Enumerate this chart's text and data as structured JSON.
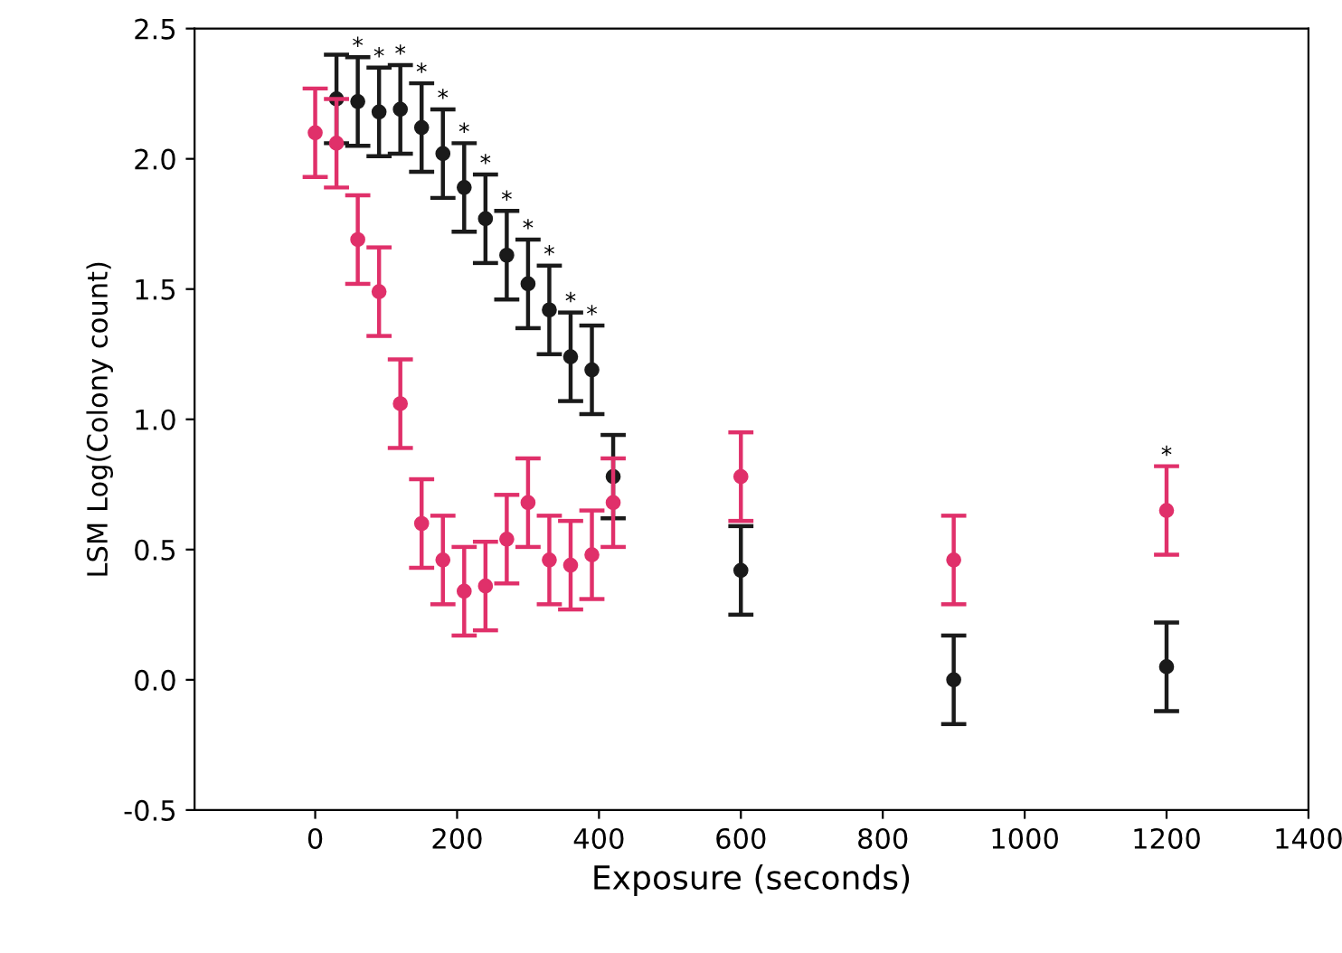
{
  "chart_data": {
    "type": "scatter",
    "xlabel": "Exposure (seconds)",
    "ylabel": "LSM Log(Colony count)",
    "xlim": [
      -170,
      1400
    ],
    "xticks": [
      0,
      200,
      400,
      600,
      800,
      1000,
      1200,
      1400
    ],
    "ylim": [
      -0.5,
      2.5
    ],
    "yticks": [
      -0.5,
      {
        "value": 0,
        "label": "0.0"
      },
      0.5,
      {
        "value": 1,
        "label": "1.0"
      },
      1.5,
      {
        "value": 2,
        "label": "2.0"
      },
      2.5
    ],
    "grid": false,
    "legend": false,
    "marker": "circle",
    "series": [
      {
        "color": "#1a1a1a",
        "x": [
          30,
          60,
          90,
          120,
          150,
          180,
          210,
          240,
          270,
          300,
          330,
          360,
          390,
          420,
          600,
          900,
          1200
        ],
        "values": [
          2.23,
          2.22,
          2.18,
          2.19,
          2.12,
          2.02,
          1.89,
          1.77,
          1.63,
          1.52,
          1.42,
          1.24,
          1.19,
          0.78,
          0.42,
          0.0,
          0.05
        ],
        "errors": [
          0.17,
          0.17,
          0.17,
          0.17,
          0.17,
          0.17,
          0.17,
          0.17,
          0.17,
          0.17,
          0.17,
          0.17,
          0.17,
          0.16,
          0.17,
          0.17,
          0.17
        ]
      },
      {
        "color": "#e0306a",
        "x": [
          0,
          30,
          60,
          90,
          120,
          150,
          180,
          210,
          240,
          270,
          300,
          330,
          360,
          390,
          420,
          600,
          900,
          1200
        ],
        "values": [
          2.1,
          2.06,
          1.69,
          1.49,
          1.06,
          0.6,
          0.46,
          0.34,
          0.36,
          0.54,
          0.68,
          0.46,
          0.44,
          0.48,
          0.68,
          0.78,
          0.46,
          0.65
        ],
        "errors": [
          0.17,
          0.17,
          0.17,
          0.17,
          0.17,
          0.17,
          0.17,
          0.17,
          0.17,
          0.17,
          0.17,
          0.17,
          0.17,
          0.17,
          0.17,
          0.17,
          0.17,
          0.17
        ]
      }
    ],
    "annotations": [
      {
        "text": "*",
        "x": 60,
        "y": 2.22
      },
      {
        "text": "*",
        "x": 90,
        "y": 2.18
      },
      {
        "text": "*",
        "x": 120,
        "y": 2.19
      },
      {
        "text": "*",
        "x": 150,
        "y": 2.12
      },
      {
        "text": "*",
        "x": 180,
        "y": 2.02
      },
      {
        "text": "*",
        "x": 210,
        "y": 1.89
      },
      {
        "text": "*",
        "x": 240,
        "y": 1.77
      },
      {
        "text": "*",
        "x": 270,
        "y": 1.63
      },
      {
        "text": "*",
        "x": 300,
        "y": 1.52
      },
      {
        "text": "*",
        "x": 330,
        "y": 1.42
      },
      {
        "text": "*",
        "x": 360,
        "y": 1.24
      },
      {
        "text": "*",
        "x": 390,
        "y": 1.19
      },
      {
        "text": "*",
        "x": 1200,
        "y": 0.65
      }
    ]
  }
}
